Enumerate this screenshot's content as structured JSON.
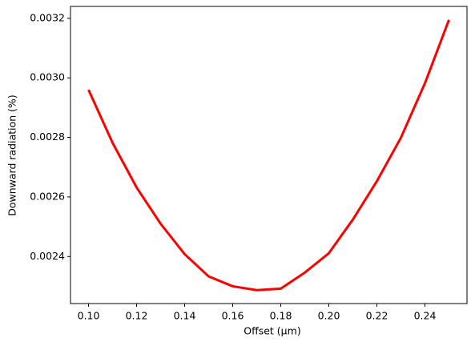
{
  "chart_data": {
    "type": "line",
    "xlabel": "Offset (μm)",
    "ylabel": "Downward radiation (%)",
    "x": [
      0.1,
      0.11,
      0.12,
      0.13,
      0.14,
      0.15,
      0.16,
      0.17,
      0.18,
      0.19,
      0.2,
      0.21,
      0.22,
      0.23,
      0.24,
      0.25
    ],
    "series": [
      {
        "color": "#ff0000",
        "values": [
          0.00296,
          0.002782,
          0.002632,
          0.00251,
          0.002408,
          0.002333,
          0.0023,
          0.002287,
          0.002292,
          0.002346,
          0.002411,
          0.002524,
          0.002653,
          0.002799,
          0.002982,
          0.003195
        ]
      }
    ],
    "xlim": [
      0.0925,
      0.2575
    ],
    "xticks": [
      {
        "value": 0.1,
        "label": "0.10"
      },
      0.12,
      0.14,
      0.16,
      0.18,
      {
        "value": 0.2,
        "label": "0.20"
      },
      0.22,
      0.24
    ],
    "ylim": [
      0.002242,
      0.00324
    ],
    "yticks": [
      0.0024,
      0.0026,
      0.0028,
      {
        "value": 0.003,
        "label": "0.0030"
      },
      0.0032
    ],
    "grid": false
  }
}
